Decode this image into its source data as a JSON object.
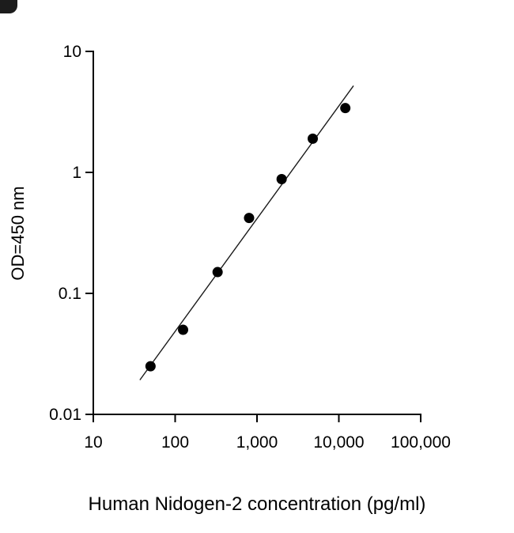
{
  "chart_data": {
    "type": "scatter",
    "title": "",
    "xlabel": "Human Nidogen-2 concentration (pg/ml)",
    "ylabel": "OD=450 nm",
    "xscale": "log",
    "yscale": "log",
    "xlim": [
      10,
      100000
    ],
    "ylim": [
      0.01,
      10
    ],
    "grid": false,
    "legend": false,
    "x_ticks": [
      {
        "value": 10,
        "label": "10"
      },
      {
        "value": 100,
        "label": "100"
      },
      {
        "value": 1000,
        "label": "1,000"
      },
      {
        "value": 10000,
        "label": "10,000"
      },
      {
        "value": 100000,
        "label": "100,000"
      }
    ],
    "y_ticks": [
      {
        "value": 0.01,
        "label": "0.01"
      },
      {
        "value": 0.1,
        "label": "0.1"
      },
      {
        "value": 1,
        "label": "1"
      },
      {
        "value": 10,
        "label": "10"
      }
    ],
    "points": [
      {
        "x": 50,
        "y": 0.025
      },
      {
        "x": 125,
        "y": 0.05
      },
      {
        "x": 330,
        "y": 0.15
      },
      {
        "x": 800,
        "y": 0.42
      },
      {
        "x": 2000,
        "y": 0.88
      },
      {
        "x": 4800,
        "y": 1.9
      },
      {
        "x": 12000,
        "y": 3.4
      }
    ],
    "fit_line": true,
    "marker_color": "#000000",
    "line_color": "#1a1a1a"
  }
}
